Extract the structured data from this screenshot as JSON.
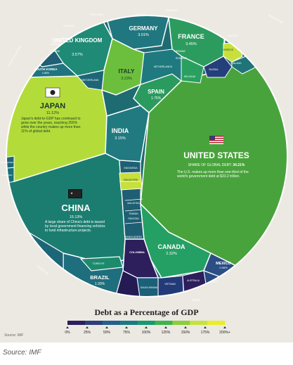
{
  "chart_data": {
    "type": "voronoi-treemap",
    "title": "Debt as a Percentage of GDP",
    "source": "Source: IMF",
    "legend": {
      "title": "Debt as a Percentage of GDP",
      "ticks": [
        "0%",
        "25%",
        "50%",
        "75%",
        "100%",
        "125%",
        "150%",
        "175%",
        "200%+"
      ],
      "colors": [
        "#2d1e5c",
        "#2f3f7a",
        "#24608a",
        "#1a7b84",
        "#179a6e",
        "#3fb34f",
        "#8ccd3a",
        "#c8e23a",
        "#e8ed2c"
      ]
    },
    "countries": [
      {
        "name": "UNITED STATES",
        "share": "34.21%",
        "share_label": "SHARE OF GLOBAL DEBT:",
        "note": "The U.S. makes up more than one-third of the world's government debt at $33.2 trillion.",
        "color": "#49a33c"
      },
      {
        "name": "CHINA",
        "share": "15.13%",
        "note": "A large share of China's debt is issued by local government financing vehicles to fund infrastructure projects.",
        "color": "#1a7d6f"
      },
      {
        "name": "JAPAN",
        "share": "11.12%",
        "note": "Japan's debt-to-GDP has continued to grow over the years, reaching 255% while the country makes up more than 11% of global debt.",
        "color": "#b4dd3b"
      },
      {
        "name": "UNITED KINGDOM",
        "share": "3.57%",
        "color": "#1f8a75"
      },
      {
        "name": "FRANCE",
        "share": "3.45%",
        "color": "#2c9c5e"
      },
      {
        "name": "ITALY",
        "share": "3.23%",
        "color": "#6cbf3c"
      },
      {
        "name": "INDIA",
        "share": "3.15%",
        "color": "#207a80"
      },
      {
        "name": "GERMANY",
        "share": "3.01%",
        "color": "#21777f"
      },
      {
        "name": "CANADA",
        "share": "2.32%",
        "color": "#24a064"
      },
      {
        "name": "BRAZIL",
        "share": "1.93%",
        "color": "#1f6e7d"
      },
      {
        "name": "SPAIN",
        "share": "1.75%",
        "color": "#2a9a5e"
      },
      {
        "name": "MEXICO",
        "share": "0.98%",
        "color": "#2b4e84"
      },
      {
        "name": "SOUTH KOREA",
        "share": "0.88%",
        "color": "#20747f"
      }
    ],
    "small_labels": [
      "PORTUGAL",
      "IRELAND",
      "NORWAY",
      "POLAND",
      "SWEDEN",
      "DENMARK",
      "FINLAND",
      "AUSTRIA",
      "BELGIUM",
      "NETHERLANDS",
      "RUSSIA",
      "GREECE",
      "SWITZERLAND",
      "UKRAINE",
      "ROMANIA",
      "SINGAPORE",
      "INDONESIA",
      "PHILIPPINES",
      "THAILAND",
      "MALAYSIA",
      "TAIWAN",
      "PAKISTAN",
      "BANGLADESH",
      "VIETNAM",
      "AUSTRALIA",
      "SAUDI ARABIA",
      "EGYPT",
      "ISRAEL",
      "TÜRKIYE",
      "ARGENTINA",
      "COLOMBIA",
      "OTHER COUNTRIES",
      "KAZAKHSTAN",
      "ROW"
    ]
  },
  "caption": "Source: IMF"
}
